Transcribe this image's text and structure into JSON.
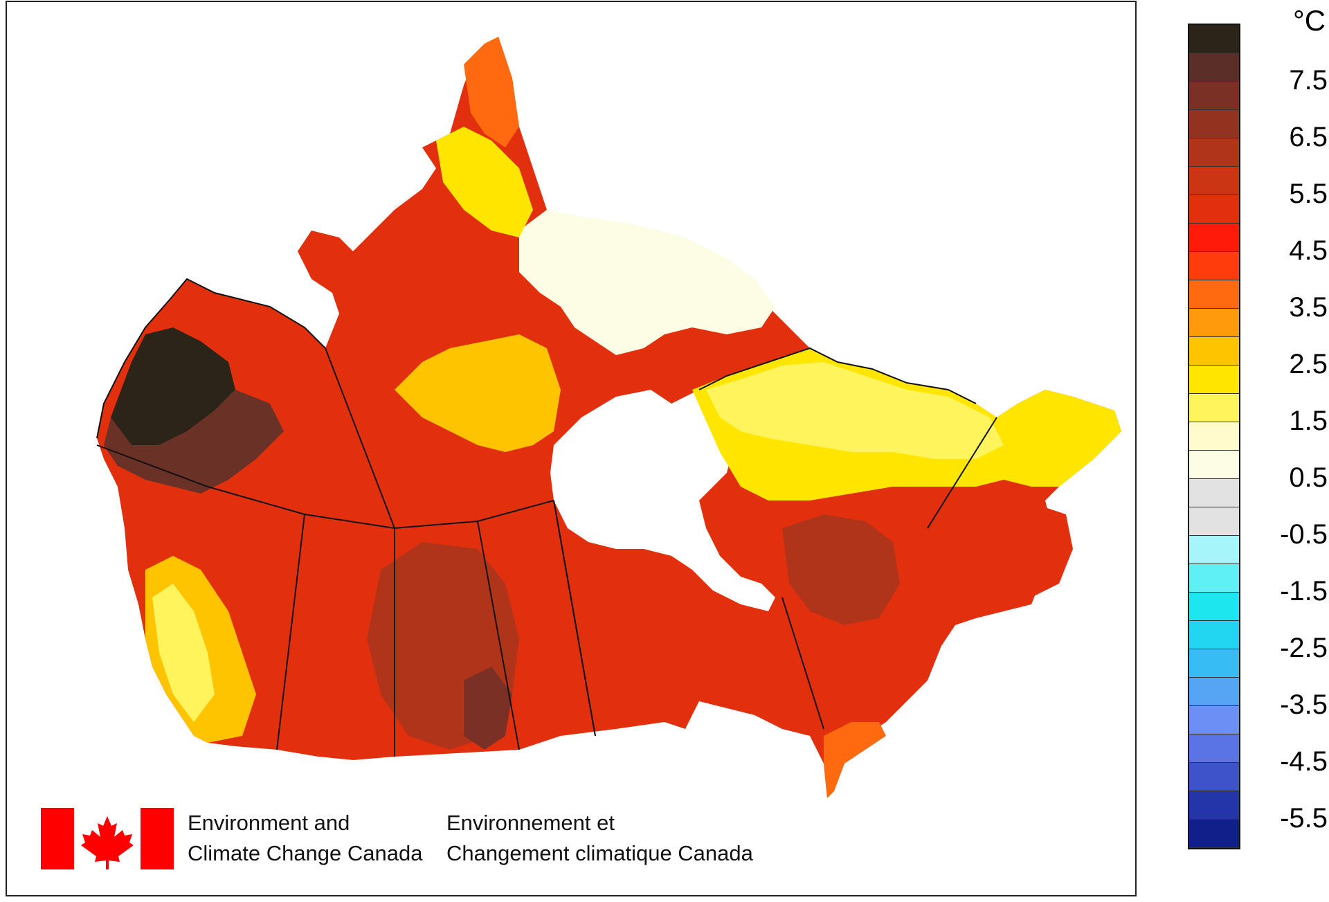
{
  "legend": {
    "unit": "°C",
    "labels": [
      "7.5",
      "6.5",
      "5.5",
      "4.5",
      "3.5",
      "2.5",
      "1.5",
      "0.5",
      "-0.5",
      "-1.5",
      "-2.5",
      "-3.5",
      "-4.5",
      "-5.5"
    ],
    "colors": [
      "#2b2419",
      "#5b2f27",
      "#7a3024",
      "#93321f",
      "#b0341a",
      "#cb3514",
      "#e2300f",
      "#ff1a0a",
      "#ff3c0c",
      "#ff6a10",
      "#ff9a0c",
      "#ffc400",
      "#ffe600",
      "#fff45c",
      "#fffbcc",
      "#fdfde6",
      "#e2e2e2",
      "#e2e2e2",
      "#a6f5fa",
      "#5ef0f5",
      "#1ee6ef",
      "#22d6f1",
      "#38bdf2",
      "#55a5f4",
      "#6c8ff5",
      "#5a74e6",
      "#3e52c9",
      "#2335a8",
      "#101f8a"
    ]
  },
  "organization": {
    "english_line1": "Environment and",
    "english_line2": "Climate Change Canada",
    "french_line1": "Environnement et",
    "french_line2": "Changement climatique Canada"
  },
  "icons": {
    "flag": "canada-flag-icon"
  },
  "map_colors": {
    "darkest": "#2b2419",
    "brown": "#6a3126",
    "dark_red": "#b0341a",
    "red": "#e2300f",
    "bright_red": "#ff2a0a",
    "orange": "#ff6a10",
    "amber": "#ffa20c",
    "yellow_orange": "#ffc400",
    "yellow": "#ffe600",
    "light_yellow": "#fff45c",
    "pale": "#fffbcc",
    "palest": "#fdfde6"
  }
}
